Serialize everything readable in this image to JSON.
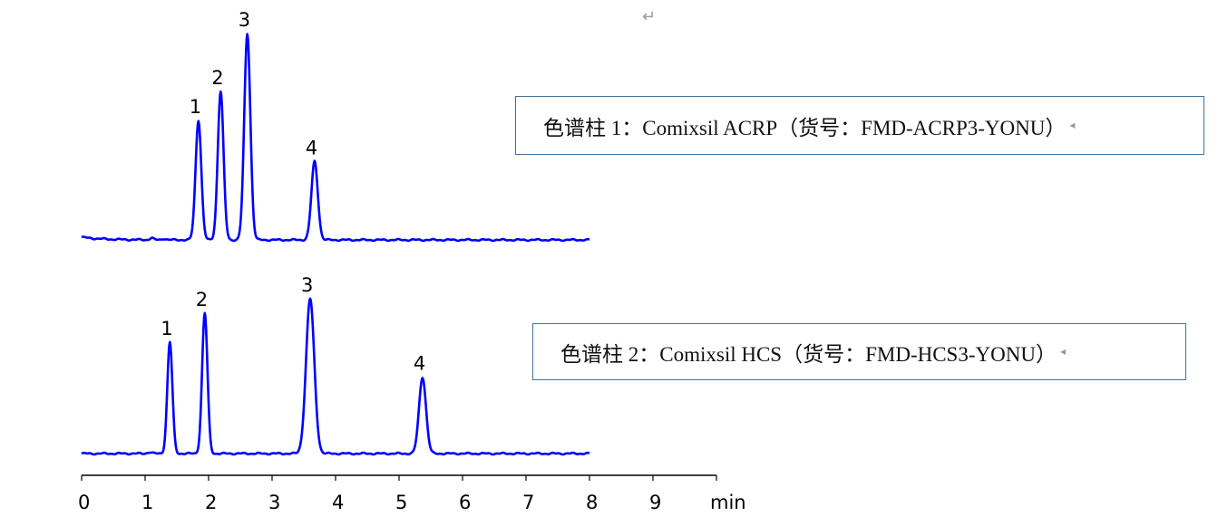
{
  "chart_data": {
    "type": "line",
    "xlabel": "min",
    "xlim": [
      0,
      10
    ],
    "xticks": [
      "0",
      "1",
      "2",
      "3",
      "4",
      "5",
      "6",
      "7",
      "8",
      "9"
    ],
    "x_unit_label": "min",
    "grid": false,
    "line_color": "#0000ff",
    "series": [
      {
        "name": "色谱柱 1：Comixsil ACRP（货号：FMD-ACRP3-YONU）",
        "x_range": [
          0,
          8
        ],
        "peaks": [
          {
            "label": "1",
            "time": 1.84,
            "relative_height": 58,
            "sigma": 0.045
          },
          {
            "label": "2",
            "time": 2.19,
            "relative_height": 72,
            "sigma": 0.045
          },
          {
            "label": "3",
            "time": 2.61,
            "relative_height": 100,
            "sigma": 0.048
          },
          {
            "label": "4",
            "time": 3.67,
            "relative_height": 38,
            "sigma": 0.05
          }
        ]
      },
      {
        "name": "色谱柱 2：Comixsil HCS（货号：FMD-HCS3-YONU）",
        "x_range": [
          0,
          8
        ],
        "peaks": [
          {
            "label": "1",
            "time": 1.39,
            "relative_height": 54,
            "sigma": 0.04
          },
          {
            "label": "2",
            "time": 1.94,
            "relative_height": 68,
            "sigma": 0.042
          },
          {
            "label": "3",
            "time": 3.6,
            "relative_height": 75,
            "sigma": 0.065
          },
          {
            "label": "4",
            "time": 5.37,
            "relative_height": 37,
            "sigma": 0.055
          }
        ]
      }
    ]
  }
}
